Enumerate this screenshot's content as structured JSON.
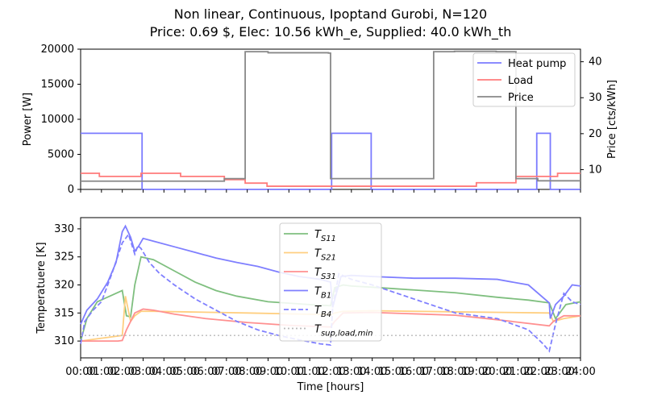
{
  "title_line1": "Non linear, Continuous, Ipoptand Gurobi, N=120",
  "title_line2": "Price: 0.69 $, Elec: 10.56 kWh_e, Supplied: 40.0 kWh_th",
  "chart_data": [
    {
      "type": "line",
      "ylabel": "Power [W]",
      "ylabel_right": "Price [cts/kWh]",
      "ylim": [
        0,
        20000
      ],
      "ylim_right": [
        4.5,
        43.5
      ],
      "yticks": [
        0,
        5000,
        10000,
        15000,
        20000
      ],
      "yticks_right": [
        10,
        20,
        30,
        40
      ],
      "legend_position": "upper right",
      "series": [
        {
          "name": "Heat pump",
          "axis": "left",
          "color": "#7b7bff",
          "step": true,
          "x": [
            0,
            2.9,
            2.95,
            12.0,
            12.05,
            13.9,
            13.95,
            21.85,
            21.9,
            22.5,
            22.55,
            24
          ],
          "values": [
            8000,
            8000,
            0,
            0,
            8000,
            8000,
            0,
            0,
            8000,
            8000,
            0,
            0
          ]
        },
        {
          "name": "Load",
          "axis": "left",
          "color": "#ff7b7b",
          "step": true,
          "x": [
            0,
            0.9,
            2.9,
            4.8,
            6.9,
            7.9,
            8.95,
            11.9,
            13.0,
            14.9,
            17.0,
            19.0,
            20.9,
            22.9,
            24
          ],
          "values": [
            2300,
            1850,
            2300,
            1850,
            1400,
            900,
            450,
            450,
            450,
            450,
            450,
            950,
            1850,
            2300,
            2300
          ]
        },
        {
          "name": "Price",
          "axis": "right",
          "color": "#888888",
          "step": true,
          "x": [
            0,
            1.9,
            6.9,
            7.9,
            9.0,
            11.9,
            12.0,
            15.95,
            16.95,
            17.95,
            19.95,
            20.9,
            21.95,
            24
          ],
          "values": [
            6.8,
            6.8,
            7.5,
            42.8,
            42.5,
            42.4,
            7.5,
            7.5,
            42.8,
            42.9,
            42.8,
            7.5,
            6.9,
            6.9
          ]
        }
      ]
    },
    {
      "type": "line",
      "xlabel": "Time [hours]",
      "ylabel": "Temperatuere [K]",
      "ylim": [
        307,
        332
      ],
      "yticks": [
        310,
        315,
        320,
        325,
        330
      ],
      "xticks": [
        "00:00",
        "01:00",
        "02:00",
        "03:00",
        "04:00",
        "05:00",
        "06:00",
        "07:00",
        "08:00",
        "09:00",
        "10:00",
        "11:00",
        "12:00",
        "13:00",
        "14:00",
        "15:00",
        "16:00",
        "17:00",
        "18:00",
        "19:00",
        "20:00",
        "21:00",
        "22:00",
        "23:00",
        "24:00"
      ],
      "legend_position": "upper center",
      "series": [
        {
          "name": "T_S11",
          "color": "#7fbf7f",
          "dash": false,
          "x": [
            0,
            0.3,
            0.8,
            1.4,
            2.0,
            2.2,
            2.4,
            2.6,
            2.9,
            3.5,
            4.5,
            5.5,
            6.5,
            7.5,
            9,
            11,
            12.0,
            12.2,
            12.6,
            13,
            14,
            16,
            18,
            20,
            21.5,
            22.5,
            22.8,
            23.3,
            24
          ],
          "values": [
            310,
            314,
            317,
            318,
            319,
            314.5,
            314.3,
            320,
            325,
            324.5,
            322.5,
            320.5,
            319,
            318,
            317,
            316.5,
            316.3,
            319.5,
            320,
            319.8,
            319.6,
            319.1,
            318.6,
            317.8,
            317.3,
            316.8,
            314,
            316.5,
            317
          ]
        },
        {
          "name": "T_S21",
          "color": "#ffcf80",
          "dash": false,
          "x": [
            0,
            1.0,
            2.0,
            2.15,
            2.4,
            2.6,
            2.9,
            3.5,
            5,
            8,
            12.0,
            12.2,
            12.6,
            14,
            18,
            22.5,
            22.7,
            23.2,
            24
          ],
          "values": [
            310,
            310.5,
            311,
            318,
            313.5,
            314.5,
            315.3,
            315.3,
            315.2,
            315,
            314.7,
            315,
            315.3,
            315.4,
            315.2,
            315,
            313.5,
            314,
            314.5
          ]
        },
        {
          "name": "T_S31",
          "color": "#ff9090",
          "dash": false,
          "x": [
            0,
            1.8,
            2.0,
            2.2,
            2.6,
            3.0,
            3.5,
            4.5,
            6,
            8,
            10,
            12.0,
            12.2,
            12.6,
            14,
            18,
            20,
            22.5,
            22.7,
            23.2,
            24
          ],
          "values": [
            310,
            310,
            310.1,
            312,
            315,
            315.7,
            315.5,
            314.8,
            314,
            313.3,
            312.8,
            312.5,
            313.5,
            315,
            315.1,
            314.6,
            313.8,
            312.7,
            313.5,
            314.5,
            314.5
          ]
        },
        {
          "name": "T_B1",
          "color": "#7f7fff",
          "dash": false,
          "x": [
            0,
            0.3,
            0.8,
            1.3,
            1.7,
            2.0,
            2.15,
            2.4,
            2.6,
            2.8,
            3.0,
            3.5,
            4.5,
            5.5,
            6.5,
            7.5,
            8.5,
            9.5,
            10.5,
            11.5,
            12.0,
            12.1,
            12.5,
            13,
            14,
            16,
            18,
            20,
            21.5,
            22.5,
            22.55,
            22.8,
            23.2,
            23.6,
            24
          ],
          "values": [
            313,
            315.5,
            317.5,
            320.5,
            324,
            329.5,
            330.5,
            328.5,
            326,
            327,
            328.3,
            327.8,
            326.8,
            325.8,
            324.8,
            324,
            323.3,
            322.3,
            321.5,
            321,
            320.5,
            316,
            321.5,
            321.7,
            321.5,
            321.2,
            321.2,
            321,
            320,
            316.8,
            314,
            316.5,
            318,
            320,
            319.8
          ]
        },
        {
          "name": "T_B4",
          "color": "#7f7fff",
          "dash": true,
          "x": [
            0,
            0.2,
            0.6,
            1.0,
            1.5,
            2.0,
            2.3,
            2.6,
            2.75,
            2.9,
            3.3,
            3.8,
            4.5,
            5.5,
            6.5,
            7.5,
            8.5,
            9.5,
            10.5,
            11.5,
            12.0,
            12.1,
            12.4,
            13,
            14,
            16,
            18,
            20,
            21.5,
            22.2,
            22.5,
            22.8,
            23.2,
            23.6,
            24
          ],
          "values": [
            309.5,
            313.5,
            315.5,
            317,
            322,
            327.5,
            329,
            325.5,
            327,
            326.5,
            324,
            322,
            320,
            317.5,
            315.5,
            313.5,
            312,
            311,
            310.2,
            309.5,
            309.3,
            316,
            322,
            321,
            320,
            317.5,
            315,
            314,
            312,
            309.5,
            308.2,
            313,
            318.5,
            317,
            316.5
          ]
        },
        {
          "name": "T_sup,load,min",
          "color": "#bbbbbb",
          "dash": true,
          "x": [
            0,
            24
          ],
          "values": [
            311,
            311
          ]
        }
      ]
    }
  ]
}
